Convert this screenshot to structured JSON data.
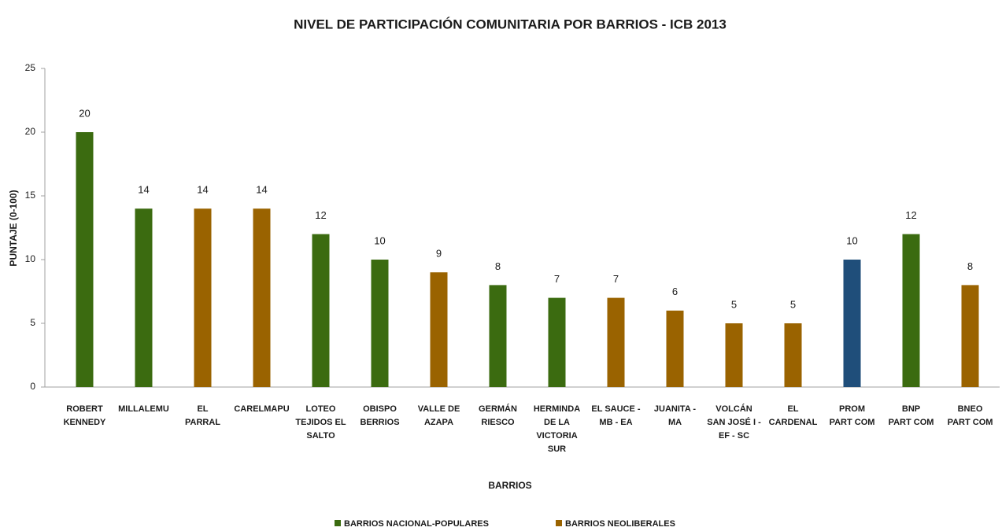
{
  "chart_data": {
    "type": "bar",
    "title": "NIVEL DE PARTICIPACIÓN COMUNITARIA POR BARRIOS - ICB  2013",
    "x_label": "BARRIOS",
    "y_label": "PUNTAJE (0-100)",
    "categories": [
      "ROBERT\nKENNEDY",
      "MILLALEMU",
      "EL\nPARRAL",
      "CARELMAPU",
      "LOTEO\nTEJIDOS EL\nSALTO",
      "OBISPO\nBERRIOS",
      "VALLE DE\nAZAPA",
      "GERMÁN\nRIESCO",
      "HERMINDA\nDE LA\nVICTORIA\nSUR",
      "EL SAUCE -\nMB - EA",
      "JUANITA -\nMA",
      "VOLCÁN\nSAN JOSÉ I -\nEF - SC",
      "EL\nCARDENAL",
      "PROM\nPART COM",
      "BNP\nPART COM",
      "BNEO\nPART COM"
    ],
    "values": [
      20,
      14,
      14,
      14,
      12,
      10,
      9,
      8,
      7,
      7,
      6,
      5,
      5,
      10,
      12,
      8
    ],
    "colors": [
      "#3b6b10",
      "#3b6b10",
      "#9a6300",
      "#9a6300",
      "#3b6b10",
      "#3b6b10",
      "#9a6300",
      "#3b6b10",
      "#3b6b10",
      "#9a6300",
      "#9a6300",
      "#9a6300",
      "#9a6300",
      "#1f4e7a",
      "#3b6b10",
      "#9a6300"
    ],
    "legend": [
      {
        "name": "BARRIOS NACIONAL-POPULARES",
        "color": "#3b6b10"
      },
      {
        "name": "BARRIOS NEOLIBERALES",
        "color": "#9a6300"
      }
    ],
    "ylim": [
      0,
      25
    ],
    "yticks": [
      0,
      5,
      10,
      15,
      20,
      25
    ],
    "grid": false
  }
}
